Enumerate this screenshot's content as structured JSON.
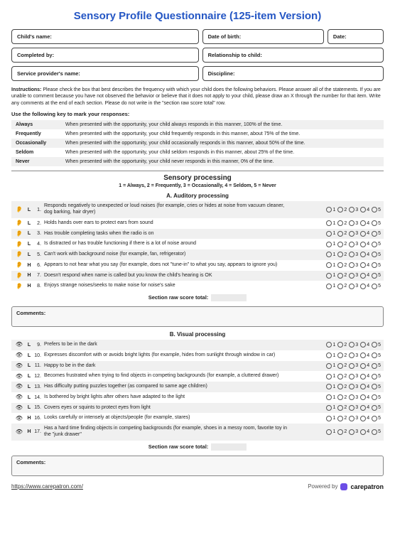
{
  "title": "Sensory Profile Questionnaire (125-item Version)",
  "info": {
    "childName": "Child's name:",
    "dob": "Date of birth:",
    "date": "Date:",
    "completedBy": "Completed by:",
    "relationship": "Relationship to child:",
    "provider": "Service provider's name:",
    "discipline": "Discipline:"
  },
  "instructionsLabel": "Instructions:",
  "instructionsText": "Please check the box that best describes the frequency with which your child does the following behaviors. Please answer all of the statements. If you are unable to comment because you have not observed the behavior or believe that it does not apply to your child, please draw an X through the number for that item. Write any comments at the end of each section. Please do not write in the \"section raw score total\" row.",
  "keyHeading": "Use the following key to mark your responses:",
  "keys": [
    {
      "k": "Always",
      "d": "When presented with the opportunity, your child always responds in this manner, 100% of the time."
    },
    {
      "k": "Frequently",
      "d": "When presented with the opportunity, your child frequently responds in this manner, about 75% of the time."
    },
    {
      "k": "Occasionally",
      "d": "When presented with the opportunity, your child occasionally responds in this manner, about 50% of the time."
    },
    {
      "k": "Seldom",
      "d": "When presented with the opportunity, your child seldom responds in this manner, about 25% of the time."
    },
    {
      "k": "Never",
      "d": "When presented with the opportunity, your child never responds in this manner, 0% of the time."
    }
  ],
  "sectionTitle": "Sensory processing",
  "scaleLegend": "1 = Always, 2 = Frequently, 3 = Occasionally, 4 = Seldom, 5 = Never",
  "subsectionA": "A. Auditory processing",
  "subsectionB": "B. Visual processing",
  "opts": [
    "1",
    "2",
    "3",
    "4",
    "5"
  ],
  "rawTotal": "Section raw score total:",
  "commentsLabel": "Comments:",
  "iconEar": "👂",
  "iconEye": "👁",
  "itemsA": [
    {
      "n": "1.",
      "lvl": "L",
      "t": "Responds negatively to unexpected or loud noises (for example, cries or hides at noise from vacuum cleaner, dog barking, hair dryer)"
    },
    {
      "n": "2.",
      "lvl": "L",
      "t": "Holds hands over ears to protect ears from sound"
    },
    {
      "n": "3.",
      "lvl": "L",
      "t": "Has trouble completing tasks when the radio is on"
    },
    {
      "n": "4.",
      "lvl": "L",
      "t": "Is distracted or has trouble functioning if there is a lot of noise around"
    },
    {
      "n": "5.",
      "lvl": "L",
      "t": "Can't work with background noise (for example, fan, refrigerator)"
    },
    {
      "n": "6.",
      "lvl": "H",
      "t": "Appears to not hear what you say (for example, does not \"tune-in\" to what you say, appears to ignore you)"
    },
    {
      "n": "7.",
      "lvl": "H",
      "t": "Doesn't respond when name is called but you know the child's hearing is OK"
    },
    {
      "n": "8.",
      "lvl": "H",
      "t": "Enjoys strange noises/seeks to make noise for noise's sake"
    }
  ],
  "itemsB": [
    {
      "n": "9.",
      "lvl": "L",
      "t": "Prefers to be in the dark"
    },
    {
      "n": "10.",
      "lvl": "L",
      "t": "Expresses discomfort with or avoids bright lights (for example, hides from sunlight through window in car)"
    },
    {
      "n": "11.",
      "lvl": "L",
      "t": "Happy to be in the dark"
    },
    {
      "n": "12.",
      "lvl": "L",
      "t": "Becomes frustrated when trying to find objects in competing backgrounds (for example, a cluttered drawer)"
    },
    {
      "n": "13.",
      "lvl": "L",
      "t": "Has difficulty putting puzzles together (as compared to same age children)"
    },
    {
      "n": "14.",
      "lvl": "L",
      "t": "Is bothered by bright lights after others have adapted to the light"
    },
    {
      "n": "15.",
      "lvl": "L",
      "t": "Covers eyes or squints to protect eyes from light"
    },
    {
      "n": "16.",
      "lvl": "H",
      "t": "Looks carefully or intensely at objects/people (for example, stares)"
    },
    {
      "n": "17.",
      "lvl": "H",
      "t": "Has a hard time finding objects in competing backgrounds (for example, shoes in a messy room, favorite toy in the \"junk drawer\""
    }
  ],
  "footer": {
    "url": "https://www.carepatron.com/",
    "poweredBy": "Powered by",
    "brand": "carepatron"
  }
}
